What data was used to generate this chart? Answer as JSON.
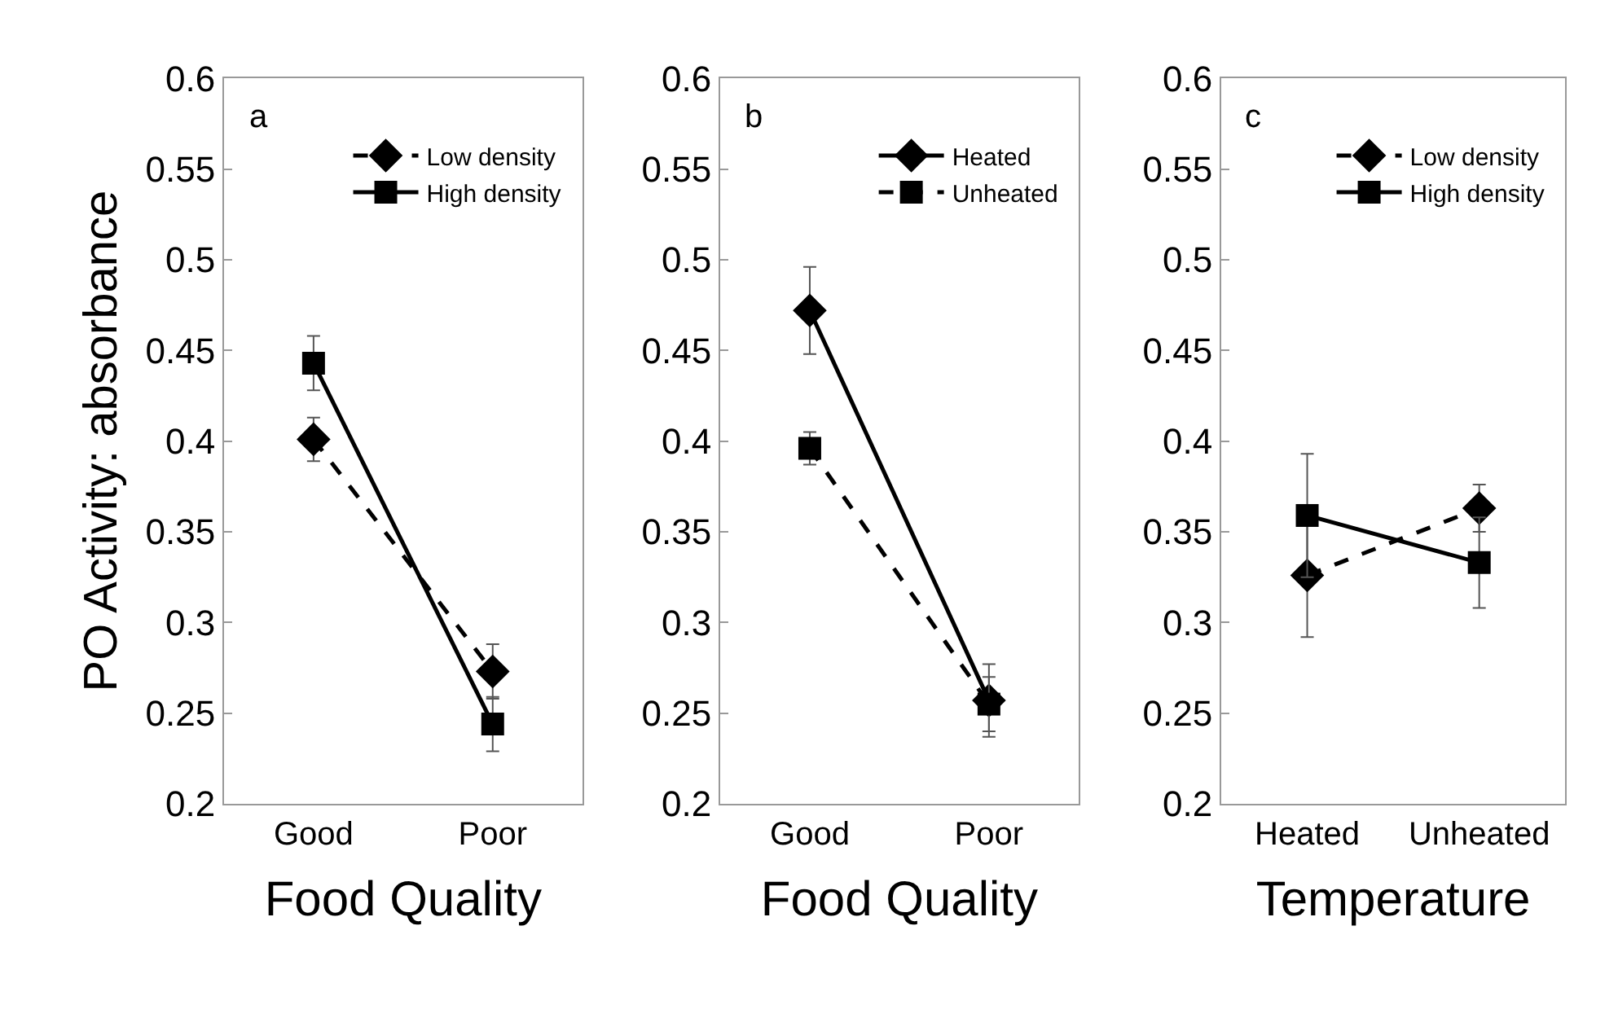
{
  "chart_data": [
    {
      "type": "line",
      "title": "a",
      "xlabel": "Food Quality",
      "ylabel": "PO Activity: absorbance",
      "categories": [
        "Good",
        "Poor"
      ],
      "ylim": [
        0.2,
        0.6
      ],
      "yticks": [
        0.2,
        0.25,
        0.3,
        0.35,
        0.4,
        0.45,
        0.5,
        0.55,
        0.6
      ],
      "legend": "top right",
      "series": [
        {
          "name": "Low density",
          "color": "#000000",
          "marker": "diamond",
          "line_style": "dashed",
          "values": [
            0.401,
            0.273
          ],
          "errors": [
            0.012,
            0.015
          ]
        },
        {
          "name": "High density",
          "color": "#000000",
          "marker": "square",
          "line_style": "solid",
          "values": [
            0.443,
            0.244
          ],
          "errors": [
            0.015,
            0.015
          ]
        }
      ]
    },
    {
      "type": "line",
      "title": "b",
      "xlabel": "Food Quality",
      "categories": [
        "Good",
        "Poor"
      ],
      "ylim": [
        0.2,
        0.6
      ],
      "yticks": [
        0.2,
        0.25,
        0.3,
        0.35,
        0.4,
        0.45,
        0.5,
        0.55,
        0.6
      ],
      "legend": "top right",
      "series": [
        {
          "name": "Heated",
          "color": "#000000",
          "marker": "diamond",
          "line_style": "solid",
          "values": [
            0.472,
            0.257
          ],
          "errors": [
            0.024,
            0.02
          ]
        },
        {
          "name": "Unheated",
          "color": "#000000",
          "marker": "square",
          "line_style": "dashed",
          "values": [
            0.396,
            0.255
          ],
          "errors": [
            0.009,
            0.015
          ]
        }
      ]
    },
    {
      "type": "line",
      "title": "c",
      "xlabel": "Temperature",
      "categories": [
        "Heated",
        "Unheated"
      ],
      "ylim": [
        0.2,
        0.6
      ],
      "yticks": [
        0.2,
        0.25,
        0.3,
        0.35,
        0.4,
        0.45,
        0.5,
        0.55,
        0.6
      ],
      "legend": "top right",
      "series": [
        {
          "name": "Low density",
          "color": "#000000",
          "marker": "diamond",
          "line_style": "dashed",
          "values": [
            0.326,
            0.363
          ],
          "errors": [
            0.034,
            0.013
          ]
        },
        {
          "name": "High density",
          "color": "#000000",
          "marker": "square",
          "line_style": "solid",
          "values": [
            0.359,
            0.333
          ],
          "errors": [
            0.034,
            0.025
          ]
        }
      ]
    }
  ]
}
